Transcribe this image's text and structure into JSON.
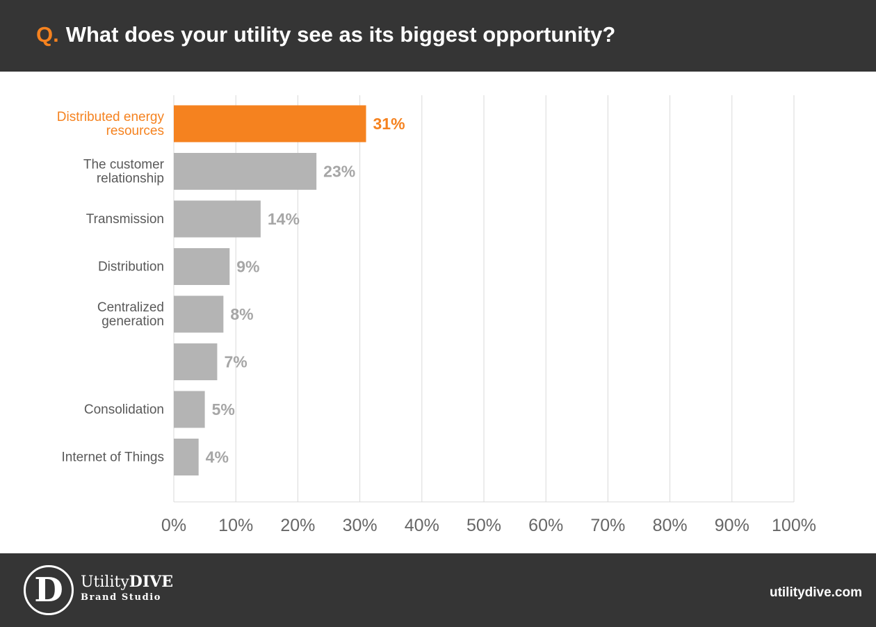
{
  "header": {
    "question_prefix": "Q.",
    "title": "What does your utility see as its biggest opportunity?"
  },
  "colors": {
    "highlight": "#f5821f",
    "bar": "#b4b4b4",
    "label": "#595959",
    "value_label": "#a6a6a6",
    "grid": "#d9d9d9",
    "axis_tick": "#666666",
    "background_band": "#353535"
  },
  "chart_data": {
    "type": "bar",
    "orientation": "horizontal",
    "title": "What does your utility see as its biggest opportunity?",
    "categories": [
      "Distributed energy resources",
      "The customer relationship",
      "Transmission",
      "Distribution",
      "Centralized generation",
      "",
      "Consolidation",
      "Internet of Things"
    ],
    "category_lines": [
      [
        "Distributed energy",
        "resources"
      ],
      [
        "The customer",
        "relationship"
      ],
      [
        "Transmission"
      ],
      [
        "Distribution"
      ],
      [
        "Centralized",
        "generation"
      ],
      [],
      [
        "Consolidation"
      ],
      [
        "Internet of Things"
      ]
    ],
    "values": [
      31,
      23,
      14,
      9,
      8,
      7,
      5,
      4
    ],
    "value_labels": [
      "31%",
      "23%",
      "14%",
      "9%",
      "8%",
      "7%",
      "5%",
      "4%"
    ],
    "highlight_index": 0,
    "xlim": [
      0,
      100
    ],
    "xticks": [
      0,
      10,
      20,
      30,
      40,
      50,
      60,
      70,
      80,
      90,
      100
    ],
    "xtick_labels": [
      "0%",
      "10%",
      "20%",
      "30%",
      "40%",
      "50%",
      "60%",
      "70%",
      "80%",
      "90%",
      "100%"
    ],
    "grid": true,
    "xlabel": "",
    "ylabel": ""
  },
  "footer": {
    "logo_name_light": "Utility",
    "logo_name_bold": "DIVE",
    "logo_sub": "Brand Studio",
    "logo_letter": "D",
    "site": "utilitydive.com"
  }
}
